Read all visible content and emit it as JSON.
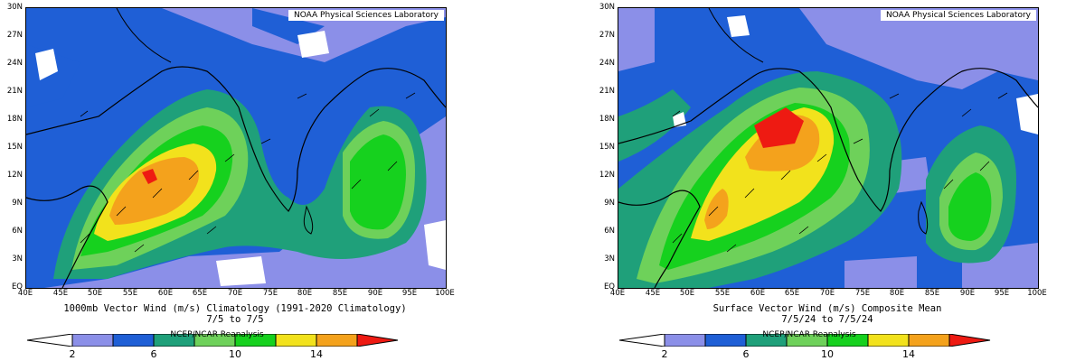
{
  "panels": [
    {
      "credit": "NOAA Physical Sciences Laboratory",
      "caption_line1": "1000mb Vector Wind (m/s) Climatology (1991-2020 Climatology)",
      "caption_line2": "7/5  to 7/5",
      "source": "NCEP/NCAR Reanalysis",
      "y_ticks": [
        "30N",
        "27N",
        "24N",
        "21N",
        "18N",
        "15N",
        "12N",
        "9N",
        "6N",
        "3N",
        "EQ"
      ],
      "x_ticks": [
        "40E",
        "45E",
        "50E",
        "55E",
        "60E",
        "65E",
        "70E",
        "75E",
        "80E",
        "85E",
        "90E",
        "95E",
        "100E"
      ],
      "colorbar_labels": [
        "2",
        "6",
        "10",
        "14"
      ]
    },
    {
      "credit": "NOAA Physical Sciences Laboratory",
      "caption_line1": "Surface Vector Wind (m/s) Composite Mean",
      "caption_line2": "7/5/24  to 7/5/24",
      "source": "NCEP/NCAR Reanalysis",
      "y_ticks": [
        "30N",
        "27N",
        "24N",
        "21N",
        "18N",
        "15N",
        "12N",
        "9N",
        "6N",
        "3N",
        "EQ"
      ],
      "x_ticks": [
        "40E",
        "45E",
        "50E",
        "55E",
        "60E",
        "65E",
        "70E",
        "75E",
        "80E",
        "85E",
        "90E",
        "95E",
        "100E"
      ],
      "colorbar_labels": [
        "2",
        "6",
        "10",
        "14"
      ]
    }
  ],
  "colors": {
    "lt2": "#ffffff",
    "c2_4": "#8b8fe8",
    "c4_6": "#1f5fd6",
    "c6_8": "#1fa07a",
    "c8_10": "#6ed15a",
    "c10_12": "#16d11e",
    "c12_14": "#f2e21c",
    "c14_16": "#f4a21c",
    "gt16": "#ee1a12"
  }
}
